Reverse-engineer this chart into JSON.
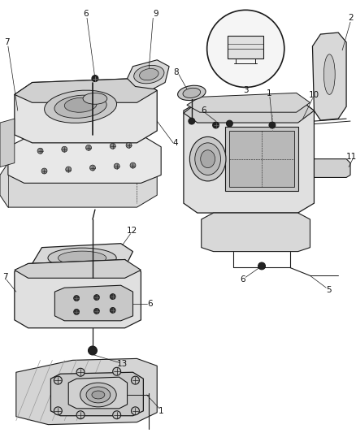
{
  "figsize": [
    4.38,
    5.33
  ],
  "dpi": 100,
  "bg": "#ffffff",
  "lc": "#1a1a1a",
  "gray1": "#c8c8c8",
  "gray2": "#b0b0b0",
  "gray3": "#e0e0e0",
  "dark": "#2a2a2a",
  "fs": 7.5
}
